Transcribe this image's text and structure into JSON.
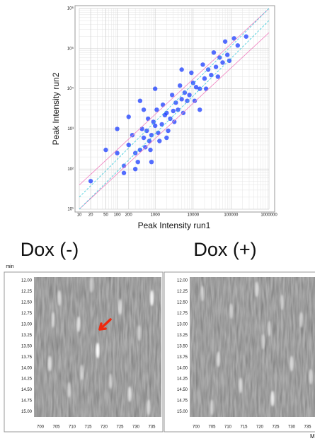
{
  "chart_data": [
    {
      "type": "scatter",
      "xlabel": "Peak Intensity run1",
      "ylabel": "Peak Intensity run2",
      "log_x": true,
      "log_y": true,
      "grid": true,
      "color": "#1a3cff",
      "xlim": [
        10,
        1000000
      ],
      "ylim": [
        10,
        1000000
      ],
      "xticks": [
        10,
        20,
        50,
        100,
        200,
        1000,
        10000,
        100000,
        1000000
      ],
      "yticks": [
        {
          "value": 10,
          "label": "10¹"
        },
        {
          "value": 100,
          "label": "10²"
        },
        {
          "value": 1000,
          "label": "10³"
        },
        {
          "value": 10000,
          "label": "10⁴"
        },
        {
          "value": 100000,
          "label": "10⁵"
        },
        {
          "value": 1000000,
          "label": "10⁶"
        }
      ],
      "guides": [
        {
          "ratio": 4,
          "color": "#f080c0"
        },
        {
          "ratio": 0.25,
          "color": "#f080c0"
        },
        {
          "ratio": 2,
          "color": "#30c8d8"
        },
        {
          "ratio": 0.5,
          "color": "#30c8d8"
        }
      ],
      "x": [
        300,
        500,
        800,
        1000,
        1500,
        2000,
        3000,
        5000,
        8000,
        12000,
        20000,
        40000,
        80000,
        150000,
        200,
        400,
        600,
        700,
        900,
        1200,
        1800,
        2500,
        3500,
        4000,
        6000,
        7000,
        10000,
        15000,
        25000,
        30000,
        50000,
        60000,
        100,
        150,
        250,
        350,
        450,
        550,
        650,
        750,
        1100,
        1300,
        1600,
        2200,
        2800,
        3200,
        4500,
        5500,
        9000,
        11000,
        18000,
        22000,
        35000,
        45000,
        70000,
        90000,
        100,
        200,
        150,
        300,
        1000,
        500,
        2000,
        120000,
        250000,
        400,
        800,
        5000,
        15000,
        20,
        50
      ],
      "values": [
        250,
        600,
        700,
        1200,
        1300,
        2500,
        2800,
        5500,
        7000,
        11000,
        18000,
        35000,
        70000,
        120000,
        400,
        300,
        900,
        500,
        1500,
        800,
        2200,
        1800,
        4500,
        3000,
        8000,
        5000,
        14000,
        10000,
        30000,
        22000,
        60000,
        45000,
        250,
        120,
        700,
        150,
        1000,
        350,
        1800,
        300,
        3000,
        500,
        4000,
        900,
        7000,
        1500,
        12000,
        2500,
        25000,
        5000,
        40000,
        10000,
        80000,
        20000,
        150000,
        50000,
        1000,
        2000,
        80,
        100,
        10000,
        3000,
        600,
        180000,
        200000,
        5000,
        150,
        30000,
        3000,
        50,
        300
      ]
    },
    {
      "type": "heatmap",
      "title": "Dox (-)",
      "ylabel": "min",
      "xlim": [
        698,
        738
      ],
      "ylim": [
        11.92,
        15.12
      ],
      "xticks": [
        700,
        705,
        710,
        715,
        720,
        725,
        730,
        735
      ],
      "yticks": [
        {
          "value": 12,
          "label": "12.00"
        },
        {
          "value": 12.25,
          "label": "12.25"
        },
        {
          "value": 12.5,
          "label": "12.50"
        },
        {
          "value": 12.75,
          "label": "12.75"
        },
        {
          "value": 13,
          "label": "13.00"
        },
        {
          "value": 13.25,
          "label": "13.25"
        },
        {
          "value": 13.5,
          "label": "13.50"
        },
        {
          "value": 13.75,
          "label": "13.75"
        },
        {
          "value": 14,
          "label": "14.00"
        },
        {
          "value": 14.25,
          "label": "14.25"
        },
        {
          "value": 14.5,
          "label": "14.50"
        },
        {
          "value": 14.75,
          "label": "14.75"
        },
        {
          "value": 15,
          "label": "15.00"
        }
      ],
      "x": [
        703,
        706,
        709,
        712,
        716,
        718,
        722,
        725,
        728,
        731,
        735,
        734,
        704,
        713
      ],
      "y": [
        13.9,
        12.4,
        14.5,
        13.0,
        12.1,
        13.6,
        14.3,
        12.6,
        14.6,
        13.2,
        12.4,
        14.9,
        12.9,
        14.1
      ],
      "values": [
        0.7,
        0.6,
        0.5,
        0.7,
        0.5,
        1.0,
        0.5,
        0.6,
        0.7,
        0.5,
        0.9,
        0.6,
        0.5,
        0.5
      ]
    },
    {
      "type": "heatmap",
      "title": "Dox (+)",
      "xlabel": "M",
      "xlim": [
        698,
        738
      ],
      "ylim": [
        11.92,
        15.12
      ],
      "xticks": [
        700,
        705,
        710,
        715,
        720,
        725,
        730,
        735
      ],
      "yticks": [
        {
          "value": 12,
          "label": "12.00"
        },
        {
          "value": 12.25,
          "label": "12.25"
        },
        {
          "value": 12.5,
          "label": "12.50"
        },
        {
          "value": 12.75,
          "label": "12.75"
        },
        {
          "value": 13,
          "label": "13.00"
        },
        {
          "value": 13.25,
          "label": "13.25"
        },
        {
          "value": 13.5,
          "label": "13.50"
        },
        {
          "value": 13.75,
          "label": "13.75"
        },
        {
          "value": 14,
          "label": "14.00"
        },
        {
          "value": 14.25,
          "label": "14.25"
        },
        {
          "value": 14.5,
          "label": "14.50"
        },
        {
          "value": 14.75,
          "label": "14.75"
        },
        {
          "value": 15,
          "label": "15.00"
        }
      ],
      "x": [
        702,
        707,
        711,
        714,
        719,
        721,
        724,
        727,
        730,
        733,
        736,
        705,
        723
      ],
      "y": [
        12.3,
        13.8,
        12.7,
        14.4,
        12.2,
        13.4,
        14.7,
        12.5,
        13.9,
        12.9,
        14.2,
        14.9,
        13.1
      ],
      "values": [
        0.5,
        0.6,
        0.5,
        0.6,
        0.6,
        0.5,
        0.8,
        0.5,
        0.6,
        0.5,
        0.6,
        0.5,
        0.5
      ]
    }
  ]
}
